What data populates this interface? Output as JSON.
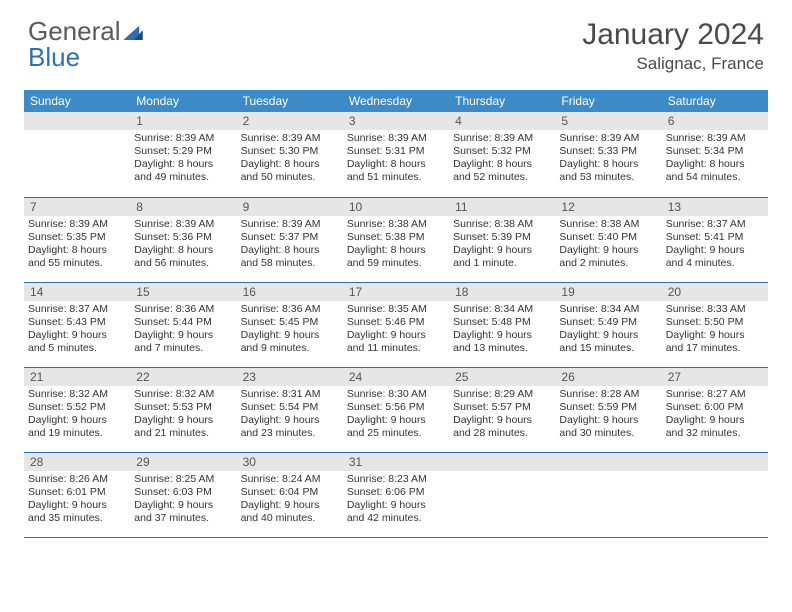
{
  "logo": {
    "part1": "General",
    "part2": "Blue"
  },
  "title": "January 2024",
  "location": "Salignac, France",
  "colors": {
    "header_bg": "#3d8ac7",
    "header_fg": "#ffffff",
    "daynum_bg": "#e6e6e6",
    "border": "#2f6fad",
    "text": "#333333"
  },
  "days_of_week": [
    "Sunday",
    "Monday",
    "Tuesday",
    "Wednesday",
    "Thursday",
    "Friday",
    "Saturday"
  ],
  "weeks": [
    [
      null,
      {
        "n": "1",
        "sr": "Sunrise: 8:39 AM",
        "ss": "Sunset: 5:29 PM",
        "d1": "Daylight: 8 hours",
        "d2": "and 49 minutes."
      },
      {
        "n": "2",
        "sr": "Sunrise: 8:39 AM",
        "ss": "Sunset: 5:30 PM",
        "d1": "Daylight: 8 hours",
        "d2": "and 50 minutes."
      },
      {
        "n": "3",
        "sr": "Sunrise: 8:39 AM",
        "ss": "Sunset: 5:31 PM",
        "d1": "Daylight: 8 hours",
        "d2": "and 51 minutes."
      },
      {
        "n": "4",
        "sr": "Sunrise: 8:39 AM",
        "ss": "Sunset: 5:32 PM",
        "d1": "Daylight: 8 hours",
        "d2": "and 52 minutes."
      },
      {
        "n": "5",
        "sr": "Sunrise: 8:39 AM",
        "ss": "Sunset: 5:33 PM",
        "d1": "Daylight: 8 hours",
        "d2": "and 53 minutes."
      },
      {
        "n": "6",
        "sr": "Sunrise: 8:39 AM",
        "ss": "Sunset: 5:34 PM",
        "d1": "Daylight: 8 hours",
        "d2": "and 54 minutes."
      }
    ],
    [
      {
        "n": "7",
        "sr": "Sunrise: 8:39 AM",
        "ss": "Sunset: 5:35 PM",
        "d1": "Daylight: 8 hours",
        "d2": "and 55 minutes."
      },
      {
        "n": "8",
        "sr": "Sunrise: 8:39 AM",
        "ss": "Sunset: 5:36 PM",
        "d1": "Daylight: 8 hours",
        "d2": "and 56 minutes."
      },
      {
        "n": "9",
        "sr": "Sunrise: 8:39 AM",
        "ss": "Sunset: 5:37 PM",
        "d1": "Daylight: 8 hours",
        "d2": "and 58 minutes."
      },
      {
        "n": "10",
        "sr": "Sunrise: 8:38 AM",
        "ss": "Sunset: 5:38 PM",
        "d1": "Daylight: 8 hours",
        "d2": "and 59 minutes."
      },
      {
        "n": "11",
        "sr": "Sunrise: 8:38 AM",
        "ss": "Sunset: 5:39 PM",
        "d1": "Daylight: 9 hours",
        "d2": "and 1 minute."
      },
      {
        "n": "12",
        "sr": "Sunrise: 8:38 AM",
        "ss": "Sunset: 5:40 PM",
        "d1": "Daylight: 9 hours",
        "d2": "and 2 minutes."
      },
      {
        "n": "13",
        "sr": "Sunrise: 8:37 AM",
        "ss": "Sunset: 5:41 PM",
        "d1": "Daylight: 9 hours",
        "d2": "and 4 minutes."
      }
    ],
    [
      {
        "n": "14",
        "sr": "Sunrise: 8:37 AM",
        "ss": "Sunset: 5:43 PM",
        "d1": "Daylight: 9 hours",
        "d2": "and 5 minutes."
      },
      {
        "n": "15",
        "sr": "Sunrise: 8:36 AM",
        "ss": "Sunset: 5:44 PM",
        "d1": "Daylight: 9 hours",
        "d2": "and 7 minutes."
      },
      {
        "n": "16",
        "sr": "Sunrise: 8:36 AM",
        "ss": "Sunset: 5:45 PM",
        "d1": "Daylight: 9 hours",
        "d2": "and 9 minutes."
      },
      {
        "n": "17",
        "sr": "Sunrise: 8:35 AM",
        "ss": "Sunset: 5:46 PM",
        "d1": "Daylight: 9 hours",
        "d2": "and 11 minutes."
      },
      {
        "n": "18",
        "sr": "Sunrise: 8:34 AM",
        "ss": "Sunset: 5:48 PM",
        "d1": "Daylight: 9 hours",
        "d2": "and 13 minutes."
      },
      {
        "n": "19",
        "sr": "Sunrise: 8:34 AM",
        "ss": "Sunset: 5:49 PM",
        "d1": "Daylight: 9 hours",
        "d2": "and 15 minutes."
      },
      {
        "n": "20",
        "sr": "Sunrise: 8:33 AM",
        "ss": "Sunset: 5:50 PM",
        "d1": "Daylight: 9 hours",
        "d2": "and 17 minutes."
      }
    ],
    [
      {
        "n": "21",
        "sr": "Sunrise: 8:32 AM",
        "ss": "Sunset: 5:52 PM",
        "d1": "Daylight: 9 hours",
        "d2": "and 19 minutes."
      },
      {
        "n": "22",
        "sr": "Sunrise: 8:32 AM",
        "ss": "Sunset: 5:53 PM",
        "d1": "Daylight: 9 hours",
        "d2": "and 21 minutes."
      },
      {
        "n": "23",
        "sr": "Sunrise: 8:31 AM",
        "ss": "Sunset: 5:54 PM",
        "d1": "Daylight: 9 hours",
        "d2": "and 23 minutes."
      },
      {
        "n": "24",
        "sr": "Sunrise: 8:30 AM",
        "ss": "Sunset: 5:56 PM",
        "d1": "Daylight: 9 hours",
        "d2": "and 25 minutes."
      },
      {
        "n": "25",
        "sr": "Sunrise: 8:29 AM",
        "ss": "Sunset: 5:57 PM",
        "d1": "Daylight: 9 hours",
        "d2": "and 28 minutes."
      },
      {
        "n": "26",
        "sr": "Sunrise: 8:28 AM",
        "ss": "Sunset: 5:59 PM",
        "d1": "Daylight: 9 hours",
        "d2": "and 30 minutes."
      },
      {
        "n": "27",
        "sr": "Sunrise: 8:27 AM",
        "ss": "Sunset: 6:00 PM",
        "d1": "Daylight: 9 hours",
        "d2": "and 32 minutes."
      }
    ],
    [
      {
        "n": "28",
        "sr": "Sunrise: 8:26 AM",
        "ss": "Sunset: 6:01 PM",
        "d1": "Daylight: 9 hours",
        "d2": "and 35 minutes."
      },
      {
        "n": "29",
        "sr": "Sunrise: 8:25 AM",
        "ss": "Sunset: 6:03 PM",
        "d1": "Daylight: 9 hours",
        "d2": "and 37 minutes."
      },
      {
        "n": "30",
        "sr": "Sunrise: 8:24 AM",
        "ss": "Sunset: 6:04 PM",
        "d1": "Daylight: 9 hours",
        "d2": "and 40 minutes."
      },
      {
        "n": "31",
        "sr": "Sunrise: 8:23 AM",
        "ss": "Sunset: 6:06 PM",
        "d1": "Daylight: 9 hours",
        "d2": "and 42 minutes."
      },
      null,
      null,
      null
    ]
  ]
}
